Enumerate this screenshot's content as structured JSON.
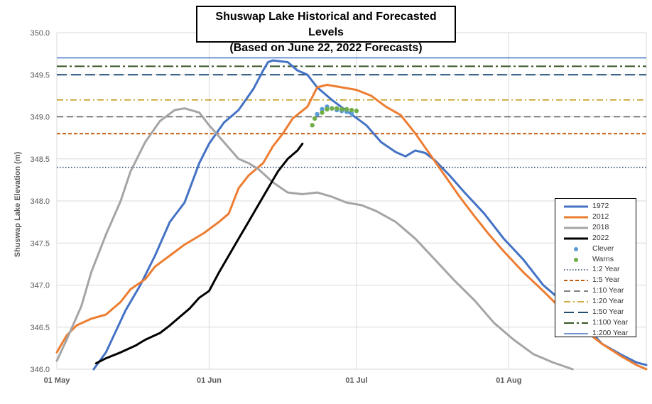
{
  "chart_data": {
    "type": "line",
    "title_lines": [
      "Shuswap Lake Historical and Forecasted Levels",
      "(Based on June 22, 2022 Forecasts)"
    ],
    "ylabel": "Shuswap Lake Elevation (m)",
    "xlabel": "",
    "x_range_day_of_year": [
      121,
      241
    ],
    "ylim": [
      346.0,
      350.0
    ],
    "yticks": [
      "346.0",
      "346.5",
      "347.0",
      "347.5",
      "348.0",
      "348.5",
      "349.0",
      "349.5",
      "350.0"
    ],
    "ytick_values": [
      346.0,
      346.5,
      347.0,
      347.5,
      348.0,
      348.5,
      349.0,
      349.5,
      350.0
    ],
    "xticks": [
      {
        "label": "01 May",
        "day": 121
      },
      {
        "label": "01 Jun",
        "day": 152
      },
      {
        "label": "01 Jul",
        "day": 182
      },
      {
        "label": "01 Aug",
        "day": 213
      }
    ],
    "grid": "horizontal",
    "legend_position": "right",
    "series": [
      {
        "name": "1972",
        "style": "line",
        "color": "#4472c4",
        "points": [
          [
            128.5,
            346.0
          ],
          [
            131,
            346.2
          ],
          [
            135,
            346.7
          ],
          [
            138,
            347.0
          ],
          [
            141,
            347.35
          ],
          [
            144,
            347.75
          ],
          [
            147,
            347.98
          ],
          [
            150,
            348.45
          ],
          [
            152,
            348.68
          ],
          [
            155,
            348.93
          ],
          [
            158,
            349.08
          ],
          [
            161,
            349.33
          ],
          [
            163,
            349.55
          ],
          [
            164,
            349.65
          ],
          [
            165,
            349.67
          ],
          [
            168,
            349.65
          ],
          [
            170,
            349.55
          ],
          [
            172,
            349.5
          ],
          [
            174,
            349.35
          ],
          [
            177,
            349.2
          ],
          [
            180,
            349.07
          ],
          [
            184,
            348.9
          ],
          [
            187,
            348.7
          ],
          [
            190,
            348.58
          ],
          [
            192,
            348.53
          ],
          [
            194,
            348.6
          ],
          [
            196,
            348.57
          ],
          [
            198,
            348.48
          ],
          [
            201,
            348.3
          ],
          [
            204,
            348.1
          ],
          [
            208,
            347.85
          ],
          [
            212,
            347.55
          ],
          [
            216,
            347.3
          ],
          [
            220,
            347.0
          ],
          [
            224,
            346.8
          ],
          [
            228,
            346.55
          ],
          [
            232,
            346.3
          ],
          [
            236,
            346.17
          ],
          [
            239,
            346.08
          ],
          [
            241,
            346.05
          ]
        ]
      },
      {
        "name": "2012",
        "style": "line",
        "color": "#ed7d31",
        "points": [
          [
            121,
            346.2
          ],
          [
            123,
            346.4
          ],
          [
            125,
            346.52
          ],
          [
            128,
            346.6
          ],
          [
            131,
            346.65
          ],
          [
            134,
            346.8
          ],
          [
            136,
            346.95
          ],
          [
            139,
            347.07
          ],
          [
            141,
            347.22
          ],
          [
            144,
            347.35
          ],
          [
            147,
            347.48
          ],
          [
            151,
            347.62
          ],
          [
            154,
            347.75
          ],
          [
            156,
            347.85
          ],
          [
            158,
            348.15
          ],
          [
            160,
            348.3
          ],
          [
            163,
            348.45
          ],
          [
            165,
            348.65
          ],
          [
            167,
            348.8
          ],
          [
            169,
            348.98
          ],
          [
            172,
            349.12
          ],
          [
            174,
            349.35
          ],
          [
            176,
            349.38
          ],
          [
            179,
            349.35
          ],
          [
            182,
            349.32
          ],
          [
            185,
            349.25
          ],
          [
            188,
            349.12
          ],
          [
            191,
            349.02
          ],
          [
            194,
            348.8
          ],
          [
            197,
            348.55
          ],
          [
            200,
            348.3
          ],
          [
            203,
            348.05
          ],
          [
            206,
            347.82
          ],
          [
            209,
            347.6
          ],
          [
            212,
            347.4
          ],
          [
            216,
            347.15
          ],
          [
            220,
            346.93
          ],
          [
            224,
            346.7
          ],
          [
            228,
            346.48
          ],
          [
            232,
            346.3
          ],
          [
            236,
            346.15
          ],
          [
            239,
            346.05
          ],
          [
            241,
            346.0
          ]
        ]
      },
      {
        "name": "2018",
        "style": "line",
        "color": "#a5a5a5",
        "points": [
          [
            121,
            346.1
          ],
          [
            123,
            346.35
          ],
          [
            126,
            346.75
          ],
          [
            128,
            347.15
          ],
          [
            131,
            347.6
          ],
          [
            134,
            348.0
          ],
          [
            136,
            348.35
          ],
          [
            139,
            348.7
          ],
          [
            142,
            348.95
          ],
          [
            145,
            349.08
          ],
          [
            147,
            349.1
          ],
          [
            150,
            349.05
          ],
          [
            152,
            348.9
          ],
          [
            155,
            348.7
          ],
          [
            158,
            348.5
          ],
          [
            160,
            348.45
          ],
          [
            162,
            348.38
          ],
          [
            165,
            348.22
          ],
          [
            168,
            348.1
          ],
          [
            171,
            348.08
          ],
          [
            174,
            348.1
          ],
          [
            177,
            348.05
          ],
          [
            180,
            347.98
          ],
          [
            183,
            347.95
          ],
          [
            186,
            347.88
          ],
          [
            190,
            347.75
          ],
          [
            194,
            347.55
          ],
          [
            198,
            347.3
          ],
          [
            202,
            347.05
          ],
          [
            206,
            346.82
          ],
          [
            210,
            346.55
          ],
          [
            214,
            346.35
          ],
          [
            218,
            346.18
          ],
          [
            222,
            346.08
          ],
          [
            226,
            346.0
          ]
        ]
      },
      {
        "name": "2022",
        "style": "line",
        "color": "#000000",
        "points": [
          [
            129,
            346.07
          ],
          [
            131,
            346.13
          ],
          [
            134,
            346.2
          ],
          [
            137,
            346.28
          ],
          [
            139,
            346.35
          ],
          [
            142,
            346.43
          ],
          [
            144,
            346.52
          ],
          [
            146,
            346.62
          ],
          [
            148,
            346.72
          ],
          [
            150,
            346.85
          ],
          [
            152,
            346.93
          ],
          [
            154,
            347.15
          ],
          [
            156,
            347.35
          ],
          [
            158,
            347.55
          ],
          [
            160,
            347.75
          ],
          [
            162,
            347.95
          ],
          [
            164,
            348.15
          ],
          [
            166,
            348.35
          ],
          [
            168,
            348.5
          ],
          [
            170,
            348.6
          ],
          [
            171,
            348.68
          ]
        ]
      },
      {
        "name": "Clever",
        "style": "points",
        "color": "#5b9bd5",
        "points": [
          [
            174,
            349.03
          ],
          [
            175,
            349.09
          ],
          [
            176,
            349.12
          ],
          [
            177,
            349.1
          ],
          [
            178,
            349.08
          ],
          [
            179,
            349.07
          ],
          [
            180,
            349.06
          ],
          [
            181,
            349.04
          ]
        ]
      },
      {
        "name": "Warns",
        "style": "points",
        "color": "#70ad47",
        "points": [
          [
            173,
            348.9
          ],
          [
            173.5,
            348.98
          ],
          [
            175,
            349.05
          ],
          [
            176,
            349.09
          ],
          [
            177,
            349.1
          ],
          [
            178,
            349.1
          ],
          [
            179,
            349.09
          ],
          [
            180,
            349.09
          ],
          [
            181,
            349.08
          ],
          [
            182,
            349.07
          ]
        ]
      },
      {
        "name": "1:2 Year",
        "style": "hline",
        "value": 348.4,
        "color": "#1f3864",
        "dash": "1.5,2.5",
        "width": 1.5
      },
      {
        "name": "1:5 Year",
        "style": "hline",
        "value": 348.8,
        "color": "#c55a11",
        "dash": "5,3",
        "width": 2
      },
      {
        "name": "1:10 Year",
        "style": "hline",
        "value": 349.0,
        "color": "#595959",
        "dash": "9,5",
        "width": 1.5
      },
      {
        "name": "1:20 Year",
        "style": "hline",
        "value": 349.2,
        "color": "#bf9000",
        "dash": "9,4,2,4",
        "width": 1.5
      },
      {
        "name": "1:50 Year",
        "style": "hline",
        "value": 349.5,
        "color": "#1f4e79",
        "dash": "14,6",
        "width": 2
      },
      {
        "name": "1:100 Year",
        "style": "hline",
        "value": 349.6,
        "color": "#375623",
        "dash": "14,4,3,4",
        "width": 2
      },
      {
        "name": "1:200 Year",
        "style": "hline",
        "value": 349.7,
        "color": "#4472c4",
        "dash": "",
        "width": 1.5
      }
    ]
  }
}
